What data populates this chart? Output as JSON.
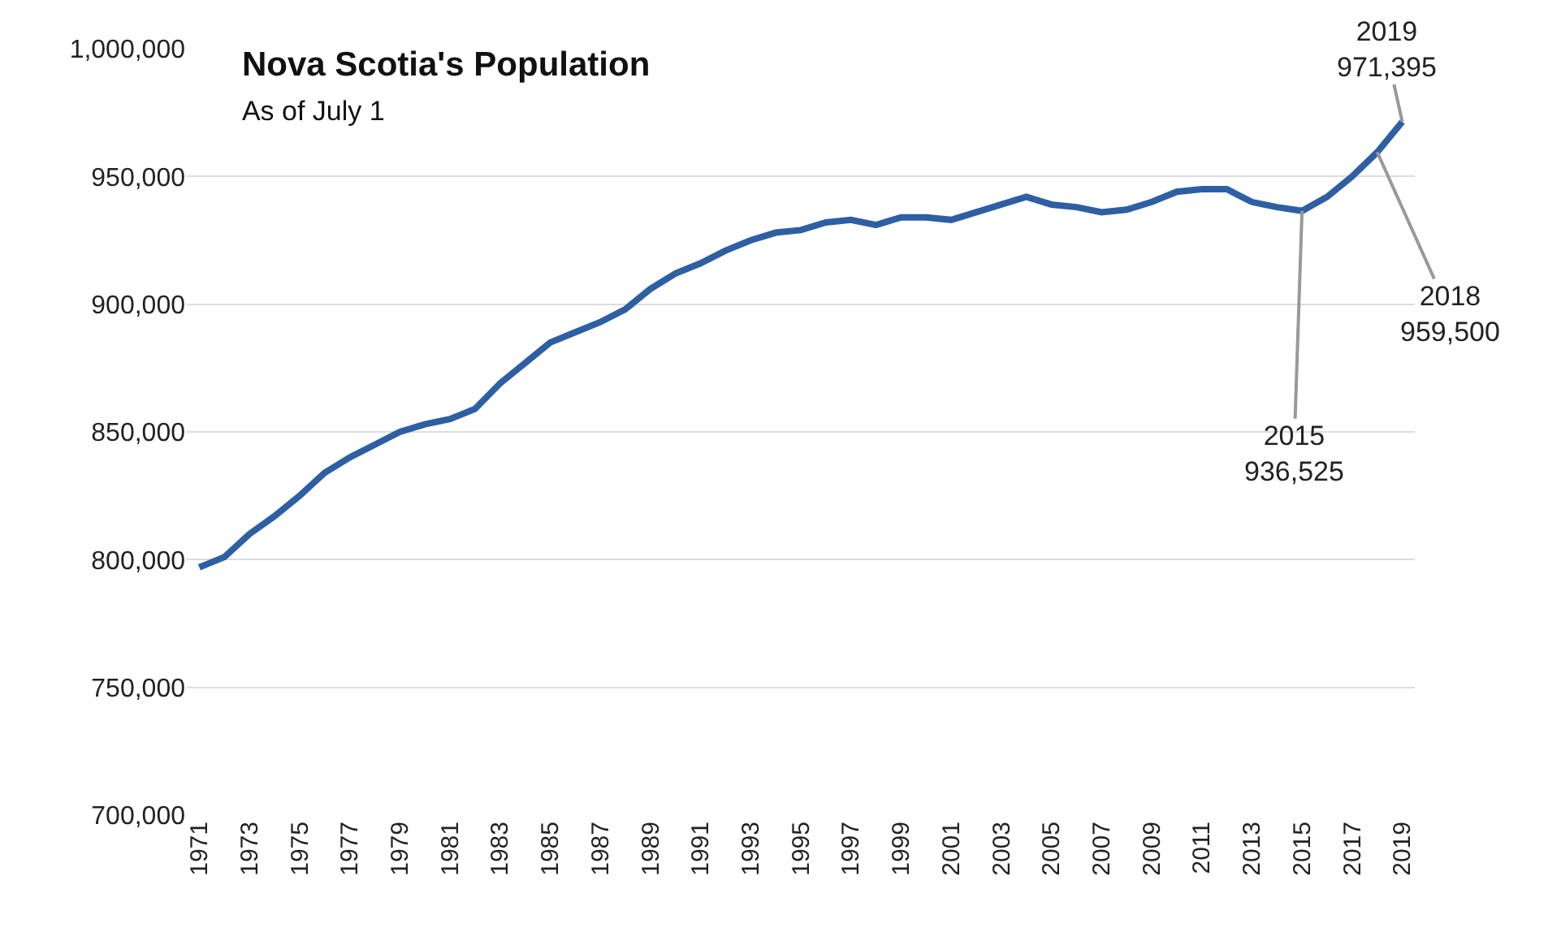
{
  "chart_data": {
    "type": "line",
    "title": "Nova Scotia's Population",
    "subtitle": "As of July 1",
    "x": [
      1971,
      1972,
      1973,
      1974,
      1975,
      1976,
      1977,
      1978,
      1979,
      1980,
      1981,
      1982,
      1983,
      1984,
      1985,
      1986,
      1987,
      1988,
      1989,
      1990,
      1991,
      1992,
      1993,
      1994,
      1995,
      1996,
      1997,
      1998,
      1999,
      2000,
      2001,
      2002,
      2003,
      2004,
      2005,
      2006,
      2007,
      2008,
      2009,
      2010,
      2011,
      2012,
      2013,
      2014,
      2015,
      2016,
      2017,
      2018,
      2019
    ],
    "series": [
      {
        "color": "#2e5fa3",
        "values": [
          797000,
          801000,
          810000,
          817000,
          825000,
          834000,
          840000,
          845000,
          850000,
          853000,
          855000,
          859000,
          869000,
          877000,
          885000,
          889000,
          893000,
          898000,
          906000,
          912000,
          916000,
          921000,
          925000,
          928000,
          929000,
          932000,
          933000,
          931000,
          934000,
          934000,
          933000,
          936000,
          939000,
          942000,
          939000,
          938000,
          936000,
          937000,
          940000,
          944000,
          945000,
          945000,
          940000,
          938000,
          936525,
          942000,
          950000,
          959500,
          971395
        ]
      }
    ],
    "annotations": [
      {
        "text": "2015\n936,525",
        "x": 2015,
        "y": 936525
      },
      {
        "text": "2018\n959,500",
        "x": 2018,
        "y": 959500
      },
      {
        "text": "2019\n971,395",
        "x": 2019,
        "y": 971395
      }
    ],
    "xlim": [
      1970.5,
      2019.5
    ],
    "xticks": [
      1971,
      1973,
      1975,
      1977,
      1979,
      1981,
      1983,
      1985,
      1987,
      1989,
      1991,
      1993,
      1995,
      1997,
      1999,
      2001,
      2003,
      2005,
      2007,
      2009,
      2011,
      2013,
      2015,
      2017,
      2019
    ],
    "ylim": [
      700000,
      1000000
    ],
    "yticks": [
      {
        "value": 700000,
        "label": "700,000"
      },
      {
        "value": 750000,
        "label": "750,000"
      },
      {
        "value": 800000,
        "label": "800,000"
      },
      {
        "value": 850000,
        "label": "850,000"
      },
      {
        "value": 900000,
        "label": "900,000"
      },
      {
        "value": 950000,
        "label": "950,000"
      },
      {
        "value": 1000000,
        "label": "1,000,000"
      }
    ],
    "grid": "y",
    "line_style": "solid"
  }
}
